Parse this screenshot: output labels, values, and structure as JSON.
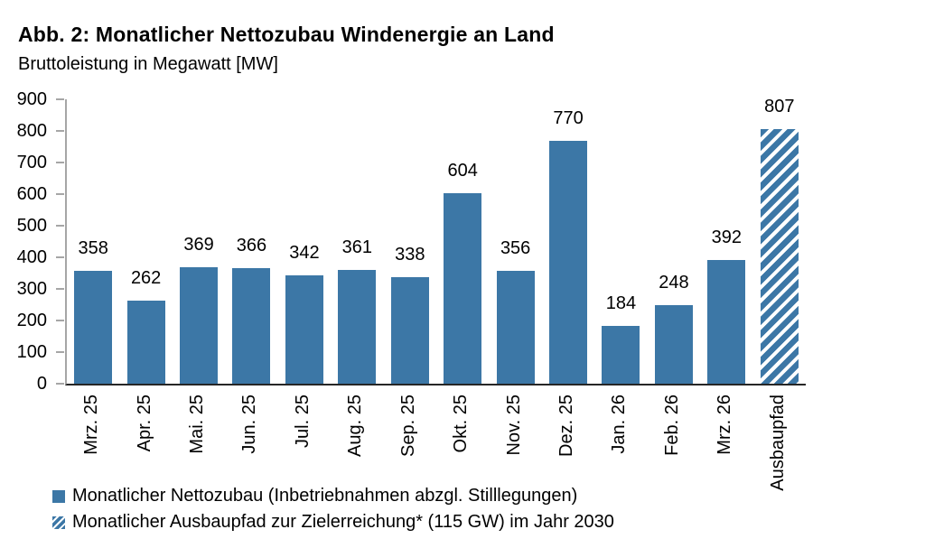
{
  "figure": {
    "title": "Abb. 2: Monatlicher Nettozubau Windenergie an Land",
    "subtitle": "Bruttoleistung in Megawatt [MW]"
  },
  "chart_data": {
    "type": "bar",
    "title": "Abb. 2: Monatlicher Nettozubau Windenergie an Land",
    "subtitle": "Bruttoleistung in Megawatt [MW]",
    "categories": [
      "Mrz. 25",
      "Apr. 25",
      "Mai. 25",
      "Jun. 25",
      "Jul. 25",
      "Aug. 25",
      "Sep. 25",
      "Okt. 25",
      "Nov. 25",
      "Dez. 25",
      "Jan. 26",
      "Feb. 26",
      "Mrz. 26",
      "Ausbaupfad"
    ],
    "values": [
      358,
      262,
      369,
      366,
      342,
      361,
      338,
      604,
      356,
      770,
      184,
      248,
      392,
      807
    ],
    "bar_styles": [
      "solid",
      "solid",
      "solid",
      "solid",
      "solid",
      "solid",
      "solid",
      "solid",
      "solid",
      "solid",
      "solid",
      "solid",
      "solid",
      "hatched"
    ],
    "data_labels_shown": true,
    "xlabel": "",
    "ylabel": "Bruttoleistung in Megawatt [MW]",
    "ylim": [
      0,
      900
    ],
    "yticks": [
      0,
      100,
      200,
      300,
      400,
      500,
      600,
      700,
      800,
      900
    ],
    "grid": false,
    "x_tick_rotation_deg": 90,
    "legend_position": "bottom-left"
  },
  "legend": {
    "items": [
      {
        "label": "Monatlicher Nettozubau (Inbetriebnahmen abzgl. Stilllegungen)",
        "swatch": "solid"
      },
      {
        "label": "Monatlicher Ausbaupfad zur Zielerreichung* (115 GW) im Jahr 2030",
        "swatch": "hatched"
      }
    ]
  },
  "colors": {
    "bar_fill": "#3C77A6",
    "hatch_background": "#FFFFFF",
    "x_axis_line": "#262626",
    "y_axis_line": "#A6A6A6",
    "text": "#000000"
  }
}
